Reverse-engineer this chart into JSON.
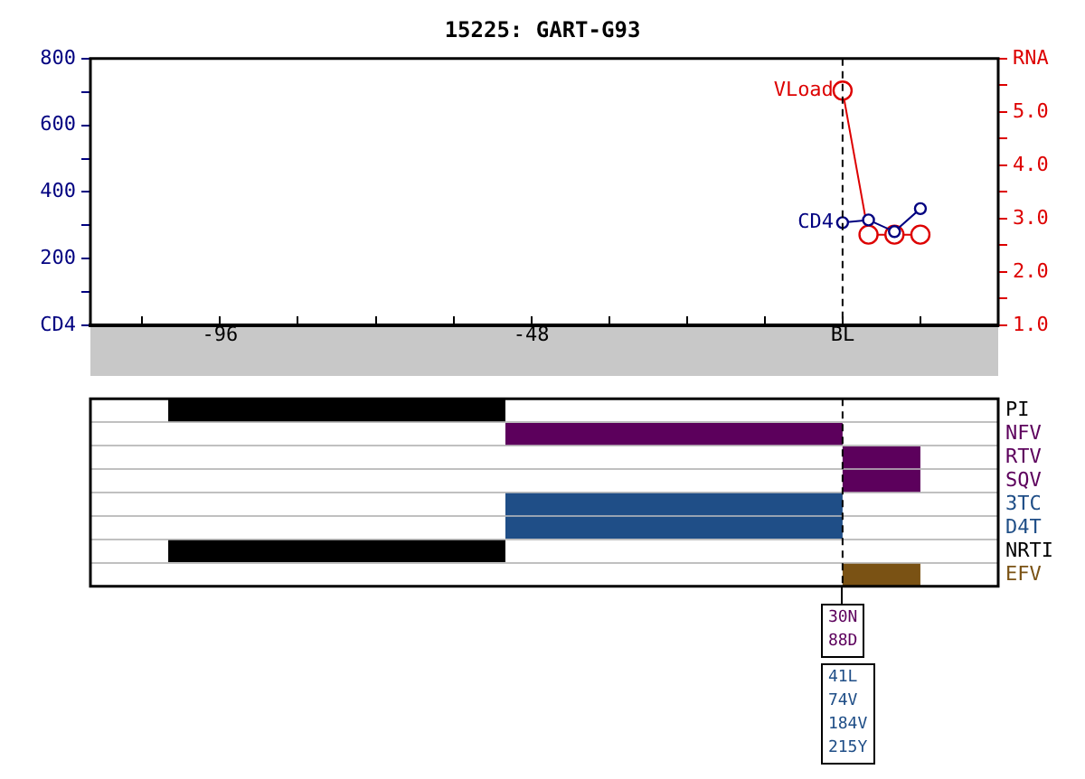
{
  "chart_data": [
    {
      "type": "line",
      "title": "15225: GART-G93",
      "series": [
        {
          "name": "CD4",
          "color": "#000080",
          "x": [
            0,
            4,
            8,
            12
          ],
          "values": [
            308,
            316,
            281,
            350
          ]
        },
        {
          "name": "VLoad",
          "color": "#dd0000",
          "axis": "y2",
          "x": [
            0,
            4,
            8,
            12
          ],
          "values": [
            5.4,
            2.7,
            2.7,
            2.7
          ]
        }
      ],
      "xlim": [
        -116,
        24
      ],
      "xticks": [
        {
          "value": -108,
          "label": null
        },
        -96,
        {
          "value": -84,
          "label": null
        },
        {
          "value": -72,
          "label": null
        },
        {
          "value": -60,
          "label": null
        },
        -48,
        {
          "value": -36,
          "label": null
        },
        {
          "value": -24,
          "label": null
        },
        {
          "value": -12,
          "label": null
        },
        {
          "value": 0,
          "label": "BL"
        },
        {
          "value": 12,
          "label": null
        }
      ],
      "ylim": [
        0,
        800
      ],
      "yticks": [
        {
          "value": 0,
          "label": "CD4"
        },
        {
          "value": 100,
          "label": null
        },
        200,
        {
          "value": 300,
          "label": null
        },
        400,
        {
          "value": 500,
          "label": null
        },
        600,
        {
          "value": 700,
          "label": null
        },
        800
      ],
      "y2lim": [
        1,
        6
      ],
      "y2ticks": [
        {
          "value": 1,
          "label": "1.0"
        },
        {
          "value": 1.5,
          "label": null
        },
        {
          "value": 2,
          "label": "2.0"
        },
        {
          "value": 2.5,
          "label": null
        },
        {
          "value": 3,
          "label": "3.0"
        },
        {
          "value": 3.5,
          "label": null
        },
        {
          "value": 4,
          "label": "4.0"
        },
        {
          "value": 4.5,
          "label": null
        },
        {
          "value": 5,
          "label": "5.0"
        },
        {
          "value": 5.5,
          "label": null
        },
        {
          "value": 6,
          "label": "RNA"
        }
      ],
      "marker": "circle",
      "ref_lines": [
        {
          "axis": "x",
          "value": 0,
          "line_style": "dashed",
          "color": "#000000"
        }
      ]
    },
    {
      "type": "bar",
      "orientation": "horizontal",
      "categories": [
        "PI",
        "NFV",
        "RTV",
        "SQV",
        "3TC",
        "D4T",
        "NRTI",
        "EFV"
      ],
      "base": [
        -104,
        -52,
        0,
        0,
        -52,
        -52,
        -104,
        0
      ],
      "values": [
        52,
        52,
        12,
        12,
        52,
        52,
        52,
        12
      ],
      "colors": [
        "#000000",
        "#5c005c",
        "#5c005c",
        "#5c005c",
        "#1f4e87",
        "#1f4e87",
        "#000000",
        "#7a5214"
      ],
      "xlim": [
        -116,
        24
      ],
      "tick_labels": "y",
      "grid": "y",
      "ref_lines": [
        {
          "axis": "x",
          "value": 0,
          "line_style": "dashed",
          "color": "#000000"
        }
      ],
      "annotations": [
        "30N\n88D",
        "41L\n74V\n184V\n215Y"
      ]
    }
  ]
}
